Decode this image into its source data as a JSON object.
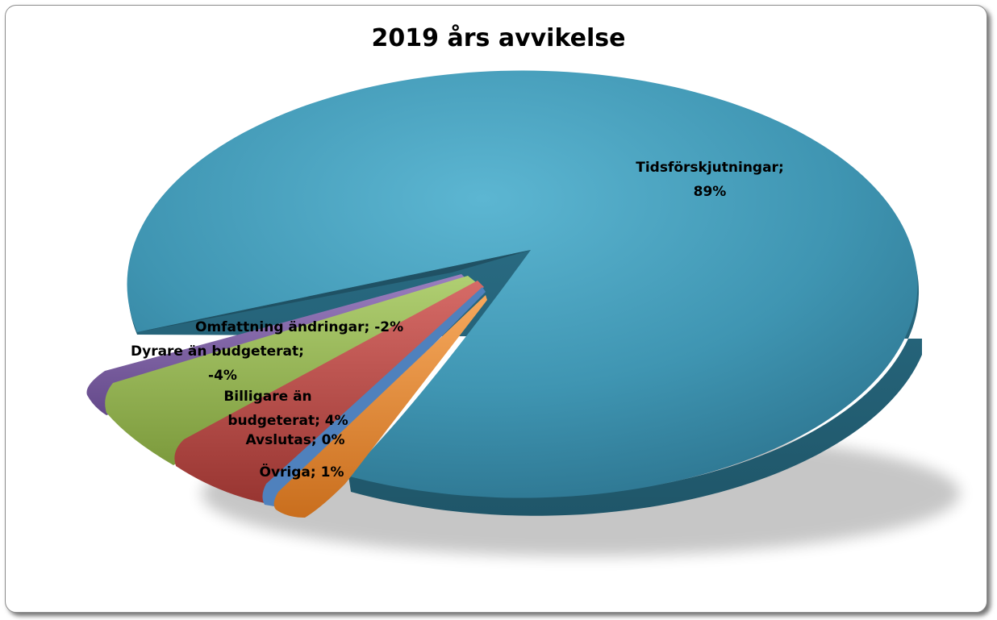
{
  "chart_data": {
    "type": "pie",
    "title": "2019 års avvikelse",
    "slices": [
      {
        "label": "Tidsförskjutningar",
        "value_label": "89%",
        "value": 89,
        "color": "#4aa3be"
      },
      {
        "label": "Övriga",
        "value_label": "1%",
        "value": 1,
        "color": "#f0913a"
      },
      {
        "label": "Avslutas",
        "value_label": "0%",
        "value": 0,
        "color": "#4f81bd"
      },
      {
        "label": "Billigare än budgeterat",
        "value_label": "4%",
        "value": 4,
        "color": "#c0504d"
      },
      {
        "label": "Dyrare än budgeterat",
        "value_label": "-4%",
        "value": -4,
        "color": "#9bbb59"
      },
      {
        "label": "Omfattning ändringar",
        "value_label": "-2%",
        "value": -2,
        "color": "#8064a2"
      }
    ],
    "label_texts": {
      "tids_line1": "Tidsförskjutningar;",
      "tids_line2": "89%",
      "omf": "Omfattning ändringar; -2%",
      "dyr_line1": "Dyrare än budgeterat;",
      "dyr_line2": "-4%",
      "bil_line1": "Billigare än",
      "bil_line2": "budgeterat; 4%",
      "avs": "Avslutas; 0%",
      "ovr": "Övriga; 1%"
    }
  }
}
